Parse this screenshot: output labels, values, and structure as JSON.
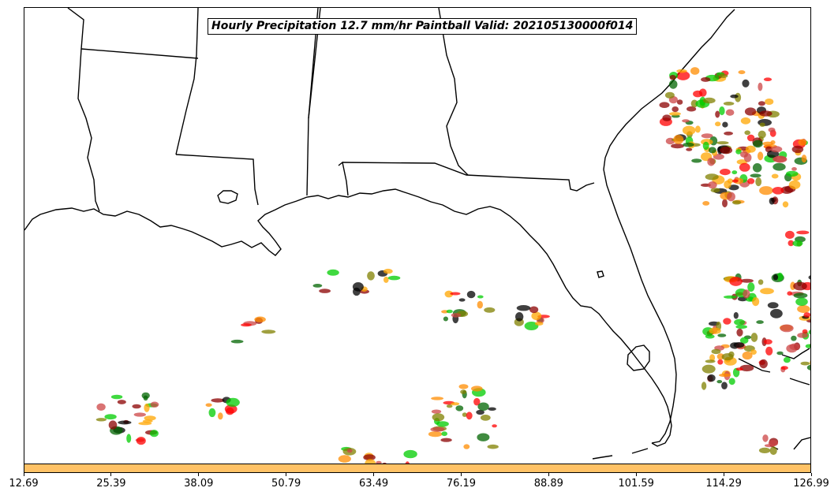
{
  "title": "Hourly Precipitation 12.7 mm/hr Paintball Valid: 202105130000f014",
  "colorbar": {
    "color": "#ffc266",
    "ticks": [
      "12.69",
      "25.39",
      "38.09",
      "50.79",
      "63.49",
      "76.19",
      "88.89",
      "101.59",
      "114.29",
      "126.99"
    ]
  },
  "member_colors": [
    "#8b0000",
    "#ff0000",
    "#ff8c00",
    "#ffa500",
    "#808000",
    "#00cc00",
    "#006400",
    "#000000",
    "#cc4444"
  ],
  "map": {
    "region": "Gulf of Mexico / Southeastern United States",
    "land_color": "#ffffff",
    "water_color": "#ffffff",
    "boundary_color": "#000000"
  }
}
